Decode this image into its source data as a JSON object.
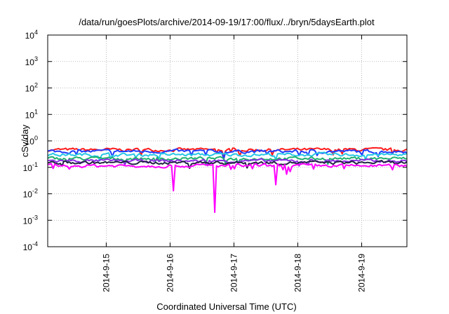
{
  "chart_data": {
    "type": "line",
    "title": "/data/run/goesPlots/archive/2014-09-19/17:00/flux/../bryn/5daysEarth.plot",
    "xlabel": "Coordinated Universal Time (UTC)",
    "ylabel": "cSv/day",
    "yscale": "log",
    "ylim": [
      0.0001,
      10000
    ],
    "xlim": [
      "2014-09-14 02:00",
      "2014-09-19 17:00"
    ],
    "grid": true,
    "legend": "none",
    "yticks": [
      {
        "base": "10",
        "exp": "-4",
        "value": 0.0001
      },
      {
        "base": "10",
        "exp": "-3",
        "value": 0.001
      },
      {
        "base": "10",
        "exp": "-2",
        "value": 0.01
      },
      {
        "base": "10",
        "exp": "-1",
        "value": 0.1
      },
      {
        "base": "10",
        "exp": "0",
        "value": 1
      },
      {
        "base": "10",
        "exp": "1",
        "value": 10
      },
      {
        "base": "10",
        "exp": "2",
        "value": 100
      },
      {
        "base": "10",
        "exp": "3",
        "value": 1000
      },
      {
        "base": "10",
        "exp": "4",
        "value": 10000
      }
    ],
    "xticks": [
      {
        "label": "2014-9-15",
        "date": "2014-09-15"
      },
      {
        "label": "2014-9-16",
        "date": "2014-09-16"
      },
      {
        "label": "2014-9-17",
        "date": "2014-09-17"
      },
      {
        "label": "2014-9-18",
        "date": "2014-09-18"
      },
      {
        "label": "2014-9-19",
        "date": "2014-09-19"
      }
    ],
    "series": [
      {
        "color": "#ff1a1a",
        "base": 0.46,
        "dips": [
          {
            "date": "2014-09-16 20:00",
            "value": 0.25
          }
        ]
      },
      {
        "color": "#1f3bff",
        "base": 0.4,
        "dips": [
          {
            "date": "2014-09-16 20:00",
            "value": 0.2
          }
        ]
      },
      {
        "color": "#27c7e6",
        "base": 0.3,
        "dips": []
      },
      {
        "color": "#20b070",
        "base": 0.215,
        "dips": []
      },
      {
        "color": "#8a2be2",
        "base": 0.175,
        "dips": []
      },
      {
        "color": "#222244",
        "base": 0.15,
        "dips": []
      },
      {
        "color": "#ff00ff",
        "base": 0.115,
        "dips": [
          {
            "date": "2014-09-16 01:00",
            "value": 0.013
          },
          {
            "date": "2014-09-16 17:00",
            "value": 0.002
          },
          {
            "date": "2014-09-17 16:00",
            "value": 0.022
          },
          {
            "date": "2014-09-17 20:00",
            "value": 0.055
          }
        ]
      }
    ]
  }
}
